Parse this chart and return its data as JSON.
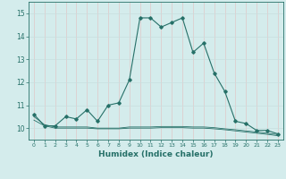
{
  "xlabel": "Humidex (Indice chaleur)",
  "x_main": [
    0,
    1,
    2,
    3,
    4,
    5,
    6,
    7,
    8,
    9,
    10,
    11,
    12,
    13,
    14,
    15,
    16,
    17,
    18,
    19,
    20,
    21,
    22,
    23
  ],
  "y_main": [
    10.6,
    10.1,
    10.1,
    10.5,
    10.4,
    10.8,
    10.3,
    11.0,
    11.1,
    12.1,
    14.8,
    14.8,
    14.4,
    14.6,
    14.8,
    13.3,
    13.7,
    12.4,
    11.6,
    10.3,
    10.2,
    9.9,
    9.9,
    9.75
  ],
  "y_line2": [
    10.5,
    10.15,
    10.05,
    10.05,
    10.05,
    10.05,
    10.0,
    10.0,
    10.0,
    10.05,
    10.05,
    10.05,
    10.07,
    10.07,
    10.07,
    10.05,
    10.05,
    10.02,
    9.97,
    9.93,
    9.88,
    9.83,
    9.78,
    9.72
  ],
  "y_line3": [
    10.35,
    10.1,
    10.0,
    10.0,
    10.0,
    10.0,
    9.97,
    9.97,
    9.97,
    10.0,
    10.0,
    10.0,
    10.02,
    10.02,
    10.02,
    10.0,
    10.0,
    9.97,
    9.93,
    9.88,
    9.83,
    9.78,
    9.73,
    9.67
  ],
  "line_color": "#267068",
  "bg_color": "#d4ecec",
  "grid_color_h": "#c8dede",
  "grid_color_v": "#e0c8c8",
  "ylim": [
    9.5,
    15.5
  ],
  "xlim": [
    -0.5,
    23.5
  ],
  "yticks": [
    10,
    11,
    12,
    13,
    14,
    15
  ]
}
